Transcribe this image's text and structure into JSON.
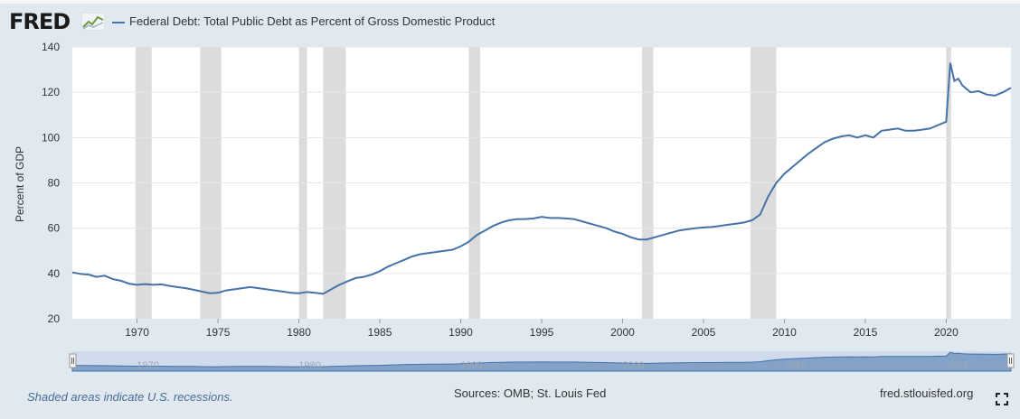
{
  "header": {
    "logo_text": "FRED",
    "legend_label": "Federal Debt: Total Public Debt as Percent of Gross Domestic Product",
    "series_color": "#4572a7"
  },
  "footer": {
    "note": "Shaded areas indicate U.S. recessions.",
    "source": "Sources: OMB; St. Louis Fed",
    "url": "fred.stlouisfed.org",
    "fullscreen_icon": "expand-icon"
  },
  "chart_data": {
    "type": "line",
    "title": "Federal Debt: Total Public Debt as Percent of Gross Domestic Product",
    "xlabel": "",
    "ylabel": "Percent of GDP",
    "xlim": [
      1966.0,
      2024.0
    ],
    "ylim": [
      20,
      140
    ],
    "yticks": [
      "20",
      "40",
      "60",
      "80",
      "100",
      "120",
      "140"
    ],
    "xticks": [
      "1970",
      "1975",
      "1980",
      "1985",
      "1990",
      "1995",
      "2000",
      "2005",
      "2010",
      "2015",
      "2020"
    ],
    "navigator_ticks": [
      "1970",
      "1980",
      "1990",
      "2000",
      "2010",
      "2020"
    ],
    "grid": true,
    "recessions": [
      [
        1969.9,
        1970.9
      ],
      [
        1973.9,
        1975.2
      ],
      [
        1980.0,
        1980.5
      ],
      [
        1981.5,
        1982.9
      ],
      [
        1990.5,
        1991.2
      ],
      [
        2001.2,
        2001.9
      ],
      [
        2007.9,
        2009.5
      ],
      [
        2020.0,
        2020.3
      ]
    ],
    "series": [
      {
        "name": "Federal Debt: Total Public Debt as Percent of Gross Domestic Product",
        "color": "#4572a7",
        "x": [
          1966.0,
          1966.5,
          1967.0,
          1967.5,
          1968.0,
          1968.5,
          1969.0,
          1969.5,
          1970.0,
          1970.5,
          1971.0,
          1971.5,
          1972.0,
          1972.5,
          1973.0,
          1973.5,
          1974.0,
          1974.5,
          1975.0,
          1975.5,
          1976.0,
          1976.5,
          1977.0,
          1977.5,
          1978.0,
          1978.5,
          1979.0,
          1979.5,
          1980.0,
          1980.5,
          1981.0,
          1981.5,
          1982.0,
          1982.5,
          1983.0,
          1983.5,
          1984.0,
          1984.5,
          1985.0,
          1985.5,
          1986.0,
          1986.5,
          1987.0,
          1987.5,
          1988.0,
          1988.5,
          1989.0,
          1989.5,
          1990.0,
          1990.5,
          1991.0,
          1991.5,
          1992.0,
          1992.5,
          1993.0,
          1993.5,
          1994.0,
          1994.5,
          1995.0,
          1995.5,
          1996.0,
          1996.5,
          1997.0,
          1997.5,
          1998.0,
          1998.5,
          1999.0,
          1999.5,
          2000.0,
          2000.5,
          2001.0,
          2001.5,
          2002.0,
          2002.5,
          2003.0,
          2003.5,
          2004.0,
          2004.5,
          2005.0,
          2005.5,
          2006.0,
          2006.5,
          2007.0,
          2007.5,
          2008.0,
          2008.5,
          2009.0,
          2009.5,
          2010.0,
          2010.5,
          2011.0,
          2011.5,
          2012.0,
          2012.5,
          2013.0,
          2013.5,
          2014.0,
          2014.5,
          2015.0,
          2015.5,
          2016.0,
          2016.5,
          2017.0,
          2017.5,
          2018.0,
          2018.5,
          2019.0,
          2019.5,
          2020.0,
          2020.25,
          2020.5,
          2020.75,
          2021.0,
          2021.5,
          2022.0,
          2022.5,
          2023.0,
          2023.5,
          2024.0
        ],
        "y": [
          40.5,
          39.8,
          39.5,
          38.5,
          39.0,
          37.5,
          36.8,
          35.5,
          35.0,
          35.3,
          35.0,
          35.2,
          34.5,
          34.0,
          33.5,
          32.8,
          32.0,
          31.3,
          31.5,
          32.5,
          33.0,
          33.5,
          34.0,
          33.5,
          33.0,
          32.5,
          32.0,
          31.5,
          31.3,
          31.8,
          31.5,
          31.0,
          33.0,
          35.0,
          36.5,
          38.0,
          38.5,
          39.5,
          41.0,
          43.0,
          44.5,
          46.0,
          47.5,
          48.5,
          49.0,
          49.5,
          50.0,
          50.5,
          52.0,
          54.0,
          57.0,
          59.0,
          61.0,
          62.5,
          63.5,
          64.0,
          64.0,
          64.3,
          65.0,
          64.5,
          64.5,
          64.3,
          64.0,
          63.0,
          62.0,
          61.0,
          60.0,
          58.5,
          57.5,
          56.0,
          55.0,
          55.0,
          56.0,
          57.0,
          58.0,
          59.0,
          59.5,
          60.0,
          60.3,
          60.5,
          61.0,
          61.5,
          62.0,
          62.5,
          63.5,
          66.0,
          74.0,
          80.0,
          84.0,
          87.0,
          90.0,
          93.0,
          95.5,
          98.0,
          99.5,
          100.5,
          101.0,
          100.0,
          101.0,
          100.0,
          103.0,
          103.5,
          104.0,
          103.0,
          103.0,
          103.5,
          104.0,
          105.5,
          107.0,
          133.0,
          125.0,
          126.0,
          123.0,
          120.0,
          120.5,
          119.0,
          118.5,
          120.0,
          122.0
        ]
      }
    ]
  }
}
